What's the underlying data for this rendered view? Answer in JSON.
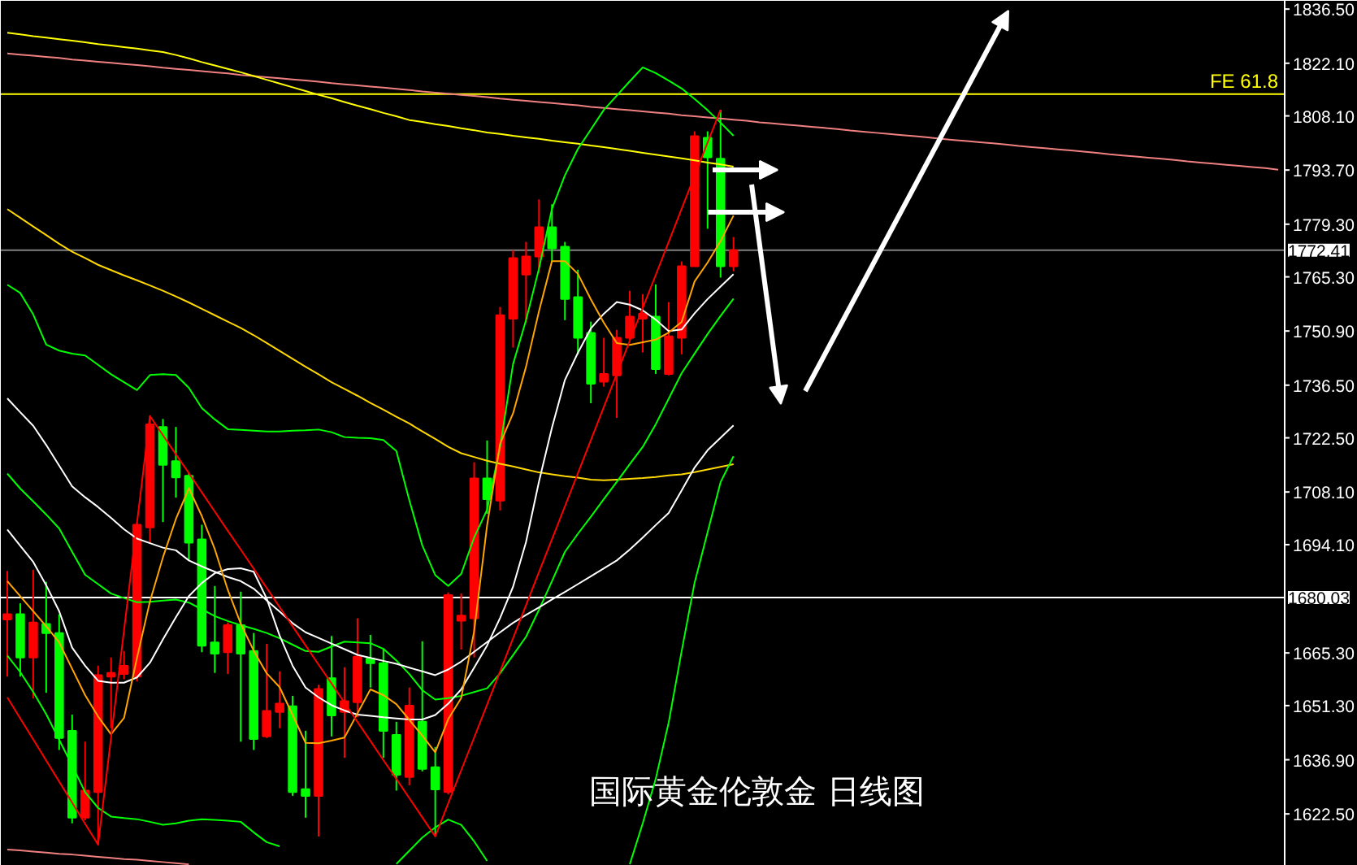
{
  "chart_data": {
    "type": "candlestick",
    "title": "国际黄金伦敦金 日线图",
    "categories": [
      null,
      null,
      null,
      null,
      null,
      null,
      null,
      null,
      null,
      null,
      null,
      null,
      null,
      null,
      null,
      null,
      null,
      null,
      null,
      null,
      null,
      null,
      null,
      null,
      null,
      null,
      null,
      null,
      null,
      null,
      null,
      null,
      null,
      null,
      null,
      null,
      null,
      null,
      null,
      null,
      null,
      null,
      null,
      null,
      null,
      null,
      null,
      null,
      null,
      null,
      null,
      null,
      null,
      null,
      null,
      null,
      null,
      null,
      null,
      null,
      null,
      null,
      null,
      null,
      null,
      null,
      null,
      null,
      null,
      null,
      null,
      null,
      null,
      null,
      null,
      null,
      null,
      null,
      null,
      null,
      null,
      null,
      null,
      null,
      null,
      null,
      null,
      null,
      null,
      null,
      null,
      null,
      null,
      null,
      null,
      null,
      null,
      null,
      null
    ],
    "ohlc": [
      [
        1674.2,
        1687.1,
        1659.0,
        1675.6
      ],
      [
        1675.6,
        1678.5,
        1659.0,
        1664.1
      ],
      [
        1664.1,
        1687.4,
        1653.2,
        1673.4
      ],
      [
        1673.0,
        1684.2,
        1654.7,
        1670.6
      ],
      [
        1670.6,
        1675.6,
        1639.5,
        1642.7
      ],
      [
        1644.6,
        1648.9,
        1620.0,
        1621.5
      ],
      [
        1621.5,
        1641.7,
        1620.8,
        1628.7
      ],
      [
        1628.3,
        1661.9,
        1614.3,
        1659.4
      ],
      [
        1659.0,
        1664.1,
        1645.3,
        1660.0
      ],
      [
        1659.7,
        1665.8,
        1658.3,
        1661.9
      ],
      [
        1659.0,
        1700.1,
        1657.7,
        1699.4
      ],
      [
        1698.7,
        1728.3,
        1694.4,
        1726.1
      ],
      [
        1725.4,
        1727.5,
        1700.1,
        1715.3
      ],
      [
        1716.3,
        1725.4,
        1706.6,
        1712.0
      ],
      [
        1712.4,
        1713.1,
        1690.0,
        1694.6
      ],
      [
        1695.5,
        1699.4,
        1665.5,
        1667.2
      ],
      [
        1668.1,
        1683.1,
        1660.0,
        1665.1
      ],
      [
        1665.5,
        1673.4,
        1659.7,
        1672.7
      ],
      [
        1672.7,
        1681.6,
        1641.7,
        1665.1
      ],
      [
        1665.8,
        1670.6,
        1639.5,
        1642.4
      ],
      [
        1643.1,
        1667.7,
        1642.7,
        1649.9
      ],
      [
        1649.6,
        1660.4,
        1645.3,
        1651.8
      ],
      [
        1651.1,
        1653.9,
        1627.3,
        1628.3
      ],
      [
        1629.1,
        1644.6,
        1621.5,
        1627.3
      ],
      [
        1627.3,
        1656.8,
        1616.5,
        1655.7
      ],
      [
        1658.6,
        1669.8,
        1643.1,
        1648.7
      ],
      [
        1649.6,
        1661.5,
        1637.4,
        1652.5
      ],
      [
        1652.2,
        1674.5,
        1648.2,
        1664.3
      ],
      [
        1663.8,
        1670.1,
        1656.1,
        1662.6
      ],
      [
        1662.6,
        1666.5,
        1637.4,
        1644.6
      ],
      [
        1643.5,
        1647.0,
        1628.7,
        1632.9
      ],
      [
        1632.3,
        1656.1,
        1630.1,
        1651.3
      ],
      [
        1647.0,
        1668.4,
        1633.8,
        1634.5
      ],
      [
        1634.9,
        1640.3,
        1616.5,
        1629.0
      ],
      [
        1628.3,
        1681.4,
        1627.7,
        1680.7
      ],
      [
        1673.9,
        1681.1,
        1666.2,
        1675.2
      ],
      [
        1674.5,
        1716.0,
        1664.1,
        1711.7
      ],
      [
        1711.7,
        1721.8,
        1702.3,
        1706.2
      ],
      [
        1705.8,
        1757.3,
        1703.2,
        1755.1
      ],
      [
        1754.2,
        1772.4,
        1746.5,
        1770.3
      ],
      [
        1765.9,
        1774.6,
        1753.0,
        1770.7
      ],
      [
        1770.7,
        1785.9,
        1766.4,
        1778.5
      ],
      [
        1778.5,
        1784.6,
        1769.4,
        1772.9
      ],
      [
        1773.3,
        1774.6,
        1753.8,
        1759.4
      ],
      [
        1759.9,
        1767.2,
        1744.7,
        1749.1
      ],
      [
        1750.4,
        1753.4,
        1731.7,
        1736.9
      ],
      [
        1737.4,
        1749.1,
        1736.1,
        1739.5
      ],
      [
        1739.1,
        1751.2,
        1727.8,
        1749.1
      ],
      [
        1749.1,
        1761.6,
        1748.6,
        1754.7
      ],
      [
        1754.2,
        1760.7,
        1745.2,
        1755.5
      ],
      [
        1754.7,
        1763.3,
        1739.5,
        1740.8
      ],
      [
        1739.5,
        1758.6,
        1739.1,
        1749.5
      ],
      [
        1749.1,
        1769.4,
        1744.7,
        1768.1
      ],
      [
        1768.1,
        1804.0,
        1768.1,
        1802.7
      ],
      [
        1802.3,
        1804.0,
        1778.1,
        1797.1
      ],
      [
        1796.7,
        1809.7,
        1765.1,
        1768.1
      ],
      [
        1768.1,
        1775.9,
        1766.8,
        1772.41
      ],
      null,
      null,
      null,
      null,
      null,
      null,
      null,
      null,
      null,
      null,
      null,
      null,
      null,
      null,
      null,
      null,
      null,
      null,
      null,
      null,
      null,
      null,
      null,
      null,
      null,
      null,
      null,
      null,
      null,
      null,
      null,
      null,
      null,
      null,
      null,
      null,
      null,
      null,
      null,
      null,
      null,
      null
    ],
    "colors": [
      "#ff0000",
      "#00ff00",
      "#ff0000",
      "#00ff00",
      "#00ff00",
      "#00ff00",
      "#ff0000",
      "#ff0000",
      "#ff0000",
      "#ff0000",
      "#ff0000",
      "#ff0000",
      "#00ff00",
      "#00ff00",
      "#00ff00",
      "#00ff00",
      "#00ff00",
      "#ff0000",
      "#00ff00",
      "#00ff00",
      "#ff0000",
      "#ff0000",
      "#00ff00",
      "#00ff00",
      "#ff0000",
      "#00ff00",
      "#ff0000",
      "#ff0000",
      "#00ff00",
      "#00ff00",
      "#00ff00",
      "#ff0000",
      "#00ff00",
      "#00ff00",
      "#ff0000",
      "#ff0000",
      "#ff0000",
      "#00ff00",
      "#ff0000",
      "#ff0000",
      "#ff0000",
      "#ff0000",
      "#00ff00",
      "#00ff00",
      "#00ff00",
      "#00ff00",
      "#ff0000",
      "#ff0000",
      "#ff0000",
      "#ff0000",
      "#00ff00",
      "#ff0000",
      "#ff0000",
      "#ff0000",
      "#00ff00",
      "#00ff00",
      "#ff0000",
      null,
      null,
      null,
      null,
      null,
      null,
      null,
      null,
      null,
      null,
      null,
      null,
      null,
      null,
      null,
      null,
      null,
      null,
      null,
      null,
      null,
      null,
      null,
      null,
      null,
      null,
      null,
      null,
      null,
      null,
      null,
      null,
      null,
      null,
      null,
      null,
      null,
      null,
      null,
      null,
      null,
      null
    ],
    "series": [
      {
        "type": "line",
        "color": "#f08080",
        "values": [
          1824.7,
          1824.4,
          1824.1,
          1823.8,
          1823.5,
          1823.1,
          1822.8,
          1822.5,
          1822.2,
          1821.9,
          1821.6,
          1821.3,
          1820.9,
          1820.6,
          1820.3,
          1820.0,
          1819.7,
          1819.4,
          1819.0,
          1818.7,
          1818.4,
          1818.1,
          1817.8,
          1817.5,
          1817.2,
          1816.8,
          1816.5,
          1816.2,
          1815.9,
          1815.6,
          1815.3,
          1815.0,
          1814.6,
          1814.3,
          1814.0,
          1813.7,
          1813.4,
          1813.1,
          1812.7,
          1812.4,
          1812.1,
          1811.8,
          1811.5,
          1811.2,
          1810.9,
          1810.5,
          1810.2,
          1809.9,
          1809.6,
          1809.3,
          1809.0,
          1808.7,
          1808.3,
          1808.0,
          1807.7,
          1807.4,
          1807.1,
          1806.8,
          1806.4,
          1806.1,
          1805.8,
          1805.5,
          1805.2,
          1804.9,
          1804.6,
          1804.2,
          1803.9,
          1803.6,
          1803.3,
          1803.0,
          1802.7,
          1802.4,
          1802.0,
          1801.7,
          1801.4,
          1801.1,
          1800.8,
          1800.5,
          1800.1,
          1799.8,
          1799.5,
          1799.2,
          1798.9,
          1798.6,
          1798.3,
          1797.9,
          1797.6,
          1797.3,
          1797.0,
          1796.7,
          1796.4,
          1796.0,
          1795.7,
          1795.4,
          1795.1,
          1794.8,
          1794.5,
          1794.2,
          1793.8
        ]
      },
      {
        "type": "line",
        "color": "#f08080",
        "values": [
          1613.0,
          1612.8,
          1612.5,
          1612.2,
          1611.9,
          1611.7,
          1611.4,
          1611.1,
          1610.8,
          1610.5,
          1610.3,
          1610.0,
          1609.7,
          1609.4,
          1609.1,
          null,
          null,
          null,
          null,
          null,
          null,
          null,
          null,
          null,
          null,
          null,
          null,
          null,
          null,
          null,
          null,
          null,
          null,
          null,
          null,
          null,
          null,
          null,
          null,
          null,
          null,
          null,
          null,
          null,
          null,
          null,
          null,
          null,
          null,
          null,
          null,
          null,
          null,
          null,
          null,
          null,
          null,
          null,
          null,
          null,
          null,
          null,
          null,
          null,
          null,
          null,
          null,
          null,
          null,
          null,
          null,
          null,
          null,
          null,
          null,
          null,
          null,
          null,
          null,
          null,
          null,
          null,
          null,
          null,
          null,
          null,
          null,
          null,
          null,
          null,
          null,
          null,
          null,
          null,
          null,
          null,
          null,
          null,
          null
        ]
      },
      {
        "type": "line",
        "color": "#ffff00",
        "values": [
          1830.2,
          1829.8,
          1829.3,
          1828.9,
          1828.5,
          1828.1,
          1827.7,
          1827.2,
          1826.8,
          1826.4,
          1826.0,
          1825.5,
          1825.1,
          1824.3,
          1823.4,
          1822.4,
          1821.5,
          1820.6,
          1819.7,
          1818.7,
          1817.7,
          1816.7,
          1815.7,
          1814.7,
          1813.7,
          1812.8,
          1811.8,
          1810.8,
          1809.9,
          1808.9,
          1808.0,
          1807.0,
          1806.5,
          1805.9,
          1805.4,
          1804.8,
          1804.3,
          1803.7,
          1803.3,
          1802.8,
          1802.4,
          1802.0,
          1801.5,
          1801.1,
          1800.7,
          1800.2,
          1799.8,
          1799.3,
          1798.8,
          1798.3,
          1797.8,
          1797.3,
          1796.8,
          1796.3,
          1795.7,
          1795.2,
          1794.6,
          null,
          null,
          null,
          null,
          null,
          null,
          null,
          null,
          null,
          null,
          null,
          null,
          null,
          null,
          null,
          null,
          null,
          null,
          null,
          null,
          null,
          null,
          null,
          null,
          null,
          null,
          null,
          null,
          null,
          null,
          null,
          null,
          null,
          null,
          null,
          null,
          null,
          null,
          null,
          null,
          null,
          null
        ]
      },
      {
        "type": "line",
        "color": "#ffd700",
        "values": [
          1783.3,
          1781.0,
          1778.7,
          1776.4,
          1774.1,
          1772.0,
          1770.3,
          1768.5,
          1767.1,
          1765.7,
          1764.4,
          1763.0,
          1761.6,
          1760.1,
          1758.5,
          1756.8,
          1755.1,
          1753.4,
          1751.7,
          1749.8,
          1747.7,
          1745.6,
          1743.5,
          1741.4,
          1739.4,
          1737.3,
          1735.5,
          1733.7,
          1731.8,
          1730.0,
          1728.1,
          1726.3,
          1724.2,
          1722.2,
          1720.1,
          1718.4,
          1717.4,
          1716.4,
          1715.6,
          1714.9,
          1714.1,
          1713.3,
          1712.8,
          1712.3,
          1711.9,
          1711.4,
          1711.2,
          1711.4,
          1711.6,
          1711.8,
          1712.1,
          1712.5,
          1712.8,
          1713.4,
          1714.1,
          1714.8,
          1715.5,
          null,
          null,
          null,
          null,
          null,
          null,
          null,
          null,
          null,
          null,
          null,
          null,
          null,
          null,
          null,
          null,
          null,
          null,
          null,
          null,
          null,
          null,
          null,
          null,
          null,
          null,
          null,
          null,
          null,
          null,
          null,
          null,
          null,
          null,
          null,
          null,
          null,
          null,
          null,
          null,
          null,
          null
        ]
      },
      {
        "type": "line",
        "color": "#00ff00",
        "values": [
          1763.2,
          1761.0,
          1755.3,
          1747.3,
          1745.7,
          1744.9,
          1744.4,
          1741.9,
          1739.4,
          1737.3,
          1735.2,
          1739.2,
          1739.4,
          1739.2,
          1735.8,
          1730.4,
          1727.4,
          1724.8,
          1724.6,
          1724.4,
          1724.2,
          1724.2,
          1724.4,
          1724.5,
          1724.7,
          1724.0,
          1722.7,
          1722.5,
          1722.4,
          1721.9,
          1719.0,
          1705.9,
          1693.9,
          1686.0,
          1683.1,
          1686.3,
          1696.0,
          1703.4,
          1720.1,
          1742.1,
          1753.8,
          1767.5,
          1783.4,
          1792.3,
          1799.3,
          1804.5,
          1809.7,
          1813.5,
          1817.3,
          1821.0,
          1819.5,
          1817.5,
          1815.4,
          1812.6,
          1809.6,
          1806.3,
          1802.8,
          null,
          null,
          null,
          null,
          null,
          null,
          null,
          null,
          null,
          null,
          null,
          null,
          null,
          null,
          null,
          null,
          null,
          null,
          null,
          null,
          null,
          null,
          null,
          null,
          null,
          null,
          null,
          null,
          null,
          null,
          null,
          null,
          null,
          null,
          null,
          null,
          null,
          null,
          null,
          null,
          null,
          null
        ]
      },
      {
        "type": "line",
        "color": "#00ff00",
        "values": [
          1713.0,
          1709.0,
          1705.6,
          1702.1,
          1698.4,
          1692.2,
          1686.1,
          1683.6,
          1681.1,
          1679.9,
          1678.8,
          1678.9,
          1679.2,
          1679.5,
          1678.7,
          1676.9,
          1675.1,
          1673.8,
          1672.7,
          1671.7,
          1670.6,
          1669.2,
          1667.5,
          1665.8,
          1665.6,
          1667.0,
          1668.3,
          1668.1,
          1667.9,
          1666.4,
          1663.3,
          1659.7,
          1655.4,
          1652.9,
          1653.3,
          1653.9,
          1654.9,
          1655.9,
          1659.9,
          1664.7,
          1669.6,
          1676.8,
          1684.4,
          1692.2,
          1697.0,
          1701.5,
          1706.2,
          1710.8,
          1715.5,
          1720.1,
          1726.1,
          1732.9,
          1739.7,
          1744.9,
          1750.1,
          1754.9,
          1759.5,
          null,
          null,
          null,
          null,
          null,
          null,
          null,
          null,
          null,
          null,
          null,
          null,
          null,
          null,
          null,
          null,
          null,
          null,
          null,
          null,
          null,
          null,
          null,
          null,
          null,
          null,
          null,
          null,
          null,
          null,
          null,
          null,
          null,
          null,
          null,
          null,
          null,
          null,
          null,
          null,
          null,
          null
        ]
      },
      {
        "type": "line",
        "color": "#00ff00",
        "values": [
          1664.6,
          1660.2,
          1654.9,
          1649.0,
          1642.2,
          1635.4,
          1628.3,
          1624.1,
          1621.8,
          1621.4,
          1621.1,
          1620.4,
          1619.6,
          1620.0,
          1620.7,
          1621.1,
          1620.9,
          1620.7,
          1620.4,
          1617.6,
          1615.0,
          1613.9,
          null,
          null,
          null,
          null,
          null,
          null,
          null,
          null,
          1609.2,
          1612.7,
          1616.2,
          1618.9,
          1621.0,
          1619.6,
          1615.2,
          1610.0,
          null,
          null,
          null,
          null,
          null,
          null,
          null,
          null,
          null,
          null,
          1609.1,
          1620.0,
          1631.8,
          1646.8,
          1665.8,
          1684.0,
          1697.4,
          1710.7,
          1717.6,
          null,
          null,
          null,
          null,
          null,
          null,
          null,
          null,
          null,
          null,
          null,
          null,
          null,
          null,
          null,
          null,
          null,
          null,
          null,
          null,
          null,
          null,
          null,
          null,
          null,
          null,
          null,
          null,
          null,
          null,
          null,
          null,
          null,
          null,
          null,
          null,
          null,
          null,
          null,
          null,
          null,
          null
        ]
      },
      {
        "type": "line",
        "color": "#ffffff",
        "values": [
          1733.0,
          1729.3,
          1725.7,
          1720.6,
          1715.1,
          1709.6,
          1706.7,
          1704.1,
          1701.2,
          1698.2,
          1695.7,
          1694.5,
          1693.3,
          1692.6,
          1689.9,
          1688.3,
          1686.9,
          1685.5,
          1684.4,
          1682.4,
          1679.3,
          1676.3,
          1673.2,
          1670.8,
          1669.3,
          1667.8,
          1666.3,
          1664.8,
          1664.0,
          1663.2,
          1662.4,
          1661.4,
          1660.4,
          1659.4,
          1660.9,
          1663.0,
          1665.6,
          1668.2,
          1670.8,
          1673.3,
          1675.4,
          1677.4,
          1679.5,
          1681.5,
          1683.6,
          1685.7,
          1687.8,
          1689.9,
          1692.8,
          1696.0,
          1699.3,
          1702.5,
          1708.5,
          1714.6,
          1719.2,
          1722.5,
          1725.8,
          null,
          null,
          null,
          null,
          null,
          null,
          null,
          null,
          null,
          null,
          null,
          null,
          null,
          null,
          null,
          null,
          null,
          null,
          null,
          null,
          null,
          null,
          null,
          null,
          null,
          null,
          null,
          null,
          null,
          null,
          null,
          null,
          null,
          null,
          null,
          null,
          null,
          null,
          null,
          null,
          null,
          null
        ]
      },
      {
        "type": "line",
        "color": "#ffffff",
        "values": [
          1698.1,
          1693.8,
          1689.5,
          1683.3,
          1676.4,
          1666.7,
          1661.9,
          1657.9,
          1657.4,
          1657.4,
          1658.8,
          1662.7,
          1668.9,
          1674.8,
          1680.4,
          1683.9,
          1686.5,
          1687.6,
          1687.8,
          1686.9,
          1679.8,
          1669.9,
          1661.9,
          1656.1,
          1653.5,
          1651.4,
          1650.0,
          1648.9,
          1648.6,
          1648.2,
          1647.9,
          1647.6,
          1647.6,
          1648.8,
          1651.8,
          1655.6,
          1661.4,
          1667.3,
          1674.6,
          1682.9,
          1694.8,
          1710.9,
          1725.2,
          1737.9,
          1745.1,
          1751.6,
          1755.5,
          1758.6,
          1757.9,
          1756.4,
          1753.9,
          1750.9,
          1751.3,
          1755.6,
          1759.4,
          1762.7,
          1766.0,
          null,
          null,
          null,
          null,
          null,
          null,
          null,
          null,
          null,
          null,
          null,
          null,
          null,
          null,
          null,
          null,
          null,
          null,
          null,
          null,
          null,
          null,
          null,
          null,
          null,
          null,
          null,
          null,
          null,
          null,
          null,
          null,
          null,
          null,
          null,
          null,
          null,
          null,
          null,
          null,
          null,
          null
        ]
      },
      {
        "type": "line",
        "color": "#ffa500",
        "values": [
          1684.4,
          1680.4,
          1676.4,
          1672.4,
          1668.1,
          1661.1,
          1654.1,
          1648.4,
          1643.7,
          1648.0,
          1664.0,
          1679.0,
          1690.7,
          1700.9,
          1709.1,
          1701.7,
          1692.9,
          1682.1,
          1673.1,
          1665.9,
          1659.9,
          1656.2,
          1648.8,
          1641.4,
          1641.3,
          1642.0,
          1642.8,
          1649.2,
          1655.6,
          1654.1,
          1651.7,
          1647.5,
          1643.3,
          1638.9,
          1647.7,
          1653.3,
          1671.1,
          1699.3,
          1720.9,
          1729.0,
          1741.4,
          1756.2,
          1769.5,
          1769.5,
          1766.1,
          1759.3,
          1753.1,
          1747.7,
          1747.2,
          1747.9,
          1748.6,
          1750.5,
          1753.3,
          1764.1,
          1769.1,
          1774.8,
          1781.6,
          null,
          null,
          null,
          null,
          null,
          null,
          null,
          null,
          null,
          null,
          null,
          null,
          null,
          null,
          null,
          null,
          null,
          null,
          null,
          null,
          null,
          null,
          null,
          null,
          null,
          null,
          null,
          null,
          null,
          null,
          null,
          null,
          null,
          null,
          null,
          null,
          null,
          null,
          null,
          null,
          null,
          null
        ]
      },
      {
        "type": "line",
        "color": "#ff0000",
        "values": [
          1653.5,
          1647.9,
          1642.3,
          1636.7,
          1631.1,
          1625.5,
          1619.9,
          1614.3,
          1642.8,
          1671.3,
          1699.8,
          1728.3,
          1723.2,
          1718.1,
          1713.1,
          1708.0,
          1702.9,
          1697.8,
          1692.8,
          1687.7,
          1682.6,
          1677.5,
          1672.4,
          1667.3,
          1662.2,
          1657.2,
          1652.1,
          1647.0,
          1641.9,
          1636.8,
          1631.8,
          1626.7,
          1621.6,
          1616.5,
          1625.3,
          1634.1,
          1642.8,
          1651.6,
          1660.4,
          1669.2,
          1678.0,
          1686.8,
          1695.5,
          1704.3,
          1713.1,
          1721.9,
          1730.7,
          1739.5,
          1748.3,
          1757.0,
          1765.8,
          1774.6,
          1783.4,
          1792.2,
          1801.0,
          1809.7,
          null,
          null,
          null,
          null,
          null,
          null,
          null,
          null,
          null,
          null,
          null,
          null,
          null,
          null,
          null,
          null,
          null,
          null,
          null,
          null,
          null,
          null,
          null,
          null,
          null,
          null,
          null,
          null,
          null,
          null,
          null,
          null,
          null,
          null,
          null,
          null,
          null,
          null,
          null,
          null,
          null,
          null,
          null
        ]
      }
    ],
    "ylim": [
      1608.7,
      1838.7
    ],
    "yticks": [
      {
        "value": 1836.5,
        "label": "1836.50"
      },
      {
        "value": 1822.1,
        "label": "1822.10"
      },
      {
        "value": 1808.1,
        "label": "1808.10"
      },
      {
        "value": 1793.7,
        "label": "1793.70"
      },
      {
        "value": 1779.3,
        "label": "1779.30"
      },
      {
        "value": 1765.3,
        "label": "1765.30"
      },
      {
        "value": 1750.9,
        "label": "1750.90"
      },
      {
        "value": 1736.5,
        "label": "1736.50"
      },
      {
        "value": 1722.5,
        "label": "1722.50"
      },
      {
        "value": 1708.1,
        "label": "1708.10"
      },
      {
        "value": 1694.1,
        "label": "1694.10"
      },
      {
        "value": 1665.3,
        "label": "1665.30"
      },
      {
        "value": 1651.3,
        "label": "1651.30"
      },
      {
        "value": 1636.9,
        "label": "1636.90"
      },
      {
        "value": 1622.5,
        "label": "1622.50"
      }
    ],
    "ref_lines": [
      {
        "axis": "y",
        "value": 1813.9,
        "color": "#ffff00"
      },
      {
        "axis": "y",
        "value": 1772.41,
        "label": "1772.41",
        "color": "#808080"
      },
      {
        "axis": "y",
        "value": 1680.03,
        "label": "1680.03",
        "color": "#ffffff"
      }
    ],
    "annotations": [
      {
        "text": "FE 61.8",
        "y": 1813.9
      }
    ]
  }
}
